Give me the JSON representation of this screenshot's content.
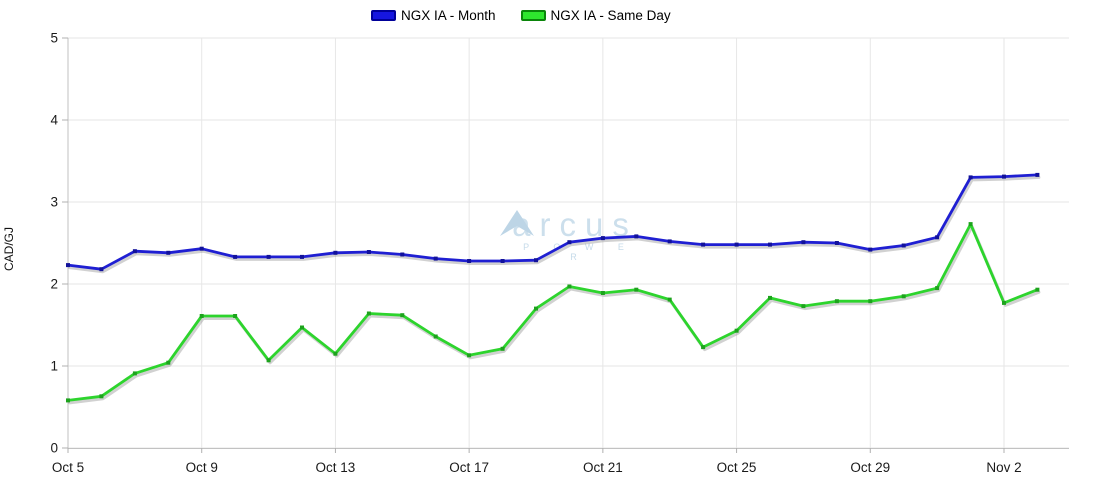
{
  "legend": {
    "series": [
      {
        "label": "NGX IA - Month",
        "swatch_fill": "#1616e0",
        "swatch_border": "#000099"
      },
      {
        "label": "NGX IA - Same Day",
        "swatch_fill": "#2ee62e",
        "swatch_border": "#0a850a"
      }
    ]
  },
  "watermark": {
    "text": "arcus",
    "subtext": "P O W E R",
    "logo": "mountain-chevron-icon",
    "color": "#ccdfec"
  },
  "chart_data": {
    "type": "line",
    "title": "",
    "xlabel": "",
    "ylabel": "CAD/GJ",
    "ylim": [
      0,
      5
    ],
    "y_ticks": [
      0,
      1,
      2,
      3,
      4,
      5
    ],
    "x_tick_labels": [
      "Oct 5",
      "Oct 9",
      "Oct 13",
      "Oct 17",
      "Oct 21",
      "Oct 25",
      "Oct 29",
      "Nov 2"
    ],
    "x_tick_indices": [
      0,
      4,
      8,
      12,
      16,
      20,
      24,
      28
    ],
    "grid": true,
    "legend_position": "top-center",
    "x": [
      "Oct 5",
      "Oct 6",
      "Oct 7",
      "Oct 8",
      "Oct 9",
      "Oct 10",
      "Oct 11",
      "Oct 12",
      "Oct 13",
      "Oct 14",
      "Oct 15",
      "Oct 16",
      "Oct 17",
      "Oct 18",
      "Oct 19",
      "Oct 20",
      "Oct 21",
      "Oct 22",
      "Oct 23",
      "Oct 24",
      "Oct 25",
      "Oct 26",
      "Oct 27",
      "Oct 28",
      "Oct 29",
      "Oct 30",
      "Oct 31",
      "Nov 1",
      "Nov 2",
      "Nov 3"
    ],
    "series": [
      {
        "name": "NGX IA - Month",
        "color": "#1f1fd2",
        "marker_color": "#12129b",
        "values": [
          2.23,
          2.18,
          2.4,
          2.38,
          2.43,
          2.33,
          2.33,
          2.33,
          2.38,
          2.39,
          2.36,
          2.31,
          2.28,
          2.28,
          2.29,
          2.51,
          2.56,
          2.58,
          2.52,
          2.48,
          2.48,
          2.48,
          2.51,
          2.5,
          2.42,
          2.47,
          2.57,
          3.3,
          3.31,
          3.33
        ]
      },
      {
        "name": "NGX IA - Same Day",
        "color": "#2dd42d",
        "marker_color": "#1da31d",
        "values": [
          0.58,
          0.63,
          0.91,
          1.04,
          1.61,
          1.61,
          1.07,
          1.47,
          1.15,
          1.64,
          1.62,
          1.36,
          1.13,
          1.21,
          1.7,
          1.97,
          1.89,
          1.93,
          1.81,
          1.23,
          1.43,
          1.83,
          1.73,
          1.79,
          1.79,
          1.85,
          1.95,
          2.73,
          1.77,
          1.93
        ]
      }
    ],
    "style": {
      "grid_color": "#e6e6e6",
      "axis_color": "#c2c2c2",
      "tick_color": "#b0b0b0",
      "label_color": "#1a1a1a",
      "shadow_color": "#9a9a9a"
    }
  }
}
